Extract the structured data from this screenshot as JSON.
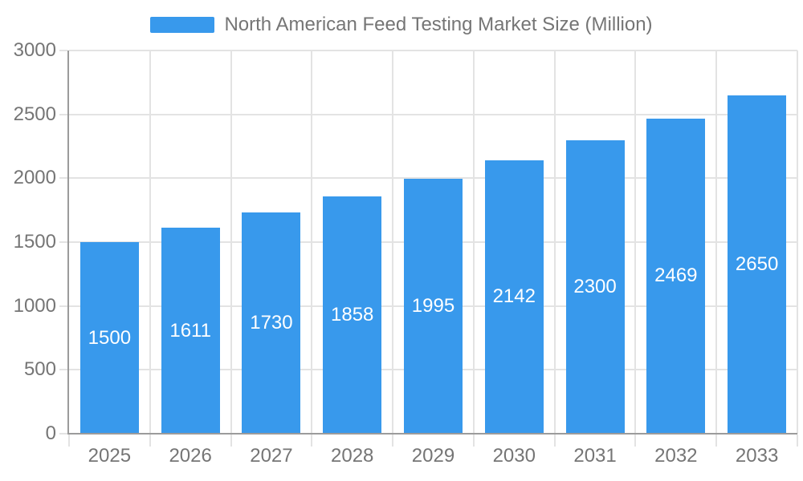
{
  "legend": {
    "label": "North American Feed Testing Market Size (Million)"
  },
  "chart_data": {
    "type": "bar",
    "title": "North American Feed Testing Market Size (Million)",
    "series_name": "North American Feed Testing Market Size (Million)",
    "categories": [
      "2025",
      "2026",
      "2027",
      "2028",
      "2029",
      "2030",
      "2031",
      "2032",
      "2033"
    ],
    "values": [
      1500,
      1611,
      1730,
      1858,
      1995,
      2142,
      2300,
      2469,
      2650
    ],
    "xlabel": "",
    "ylabel": "",
    "ylim": [
      0,
      3000
    ],
    "yticks": [
      0,
      500,
      1000,
      1500,
      2000,
      2500,
      3000
    ],
    "grid": true,
    "legend_position": "top",
    "bar_labels_inside": true,
    "colors": {
      "bar": "#3899EC",
      "bar_label": "#FFFFFF",
      "axis_line": "#9B9B9B",
      "grid_line": "#E3E3E3",
      "tick_label": "#757575"
    }
  }
}
